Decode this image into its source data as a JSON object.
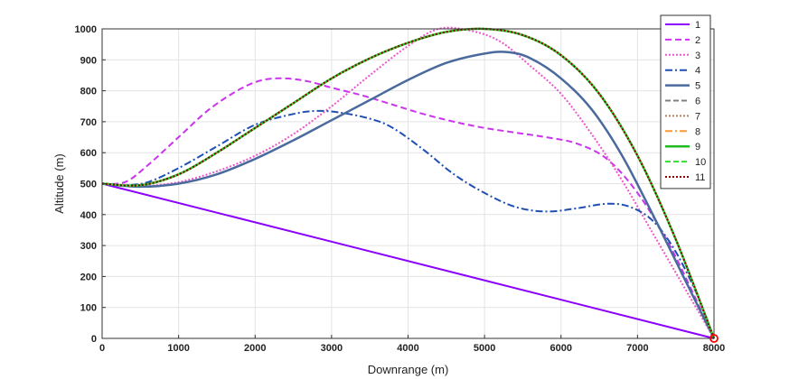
{
  "chart_data": {
    "type": "line",
    "xlabel": "Downrange (m)",
    "ylabel": "Altitude (m)",
    "xlim": [
      0,
      8000
    ],
    "ylim": [
      0,
      1000
    ],
    "xticks": [
      0,
      1000,
      2000,
      3000,
      4000,
      5000,
      6000,
      7000,
      8000
    ],
    "yticks": [
      0,
      100,
      200,
      300,
      400,
      500,
      600,
      700,
      800,
      900,
      1000
    ],
    "grid": true,
    "legend_position": "top-right",
    "target_marker": {
      "x": 8000,
      "y": 0,
      "color": "#ff0000"
    },
    "series": [
      {
        "name": "1",
        "color": "#8b00ff",
        "dash": "solid",
        "width": 2,
        "x": [
          0,
          8000
        ],
        "y": [
          500,
          0
        ]
      },
      {
        "name": "2",
        "color": "#cc33ee",
        "dash": "7,4",
        "width": 2,
        "x": [
          0,
          300,
          600,
          1000,
          1400,
          1800,
          2100,
          2400,
          2700,
          3000,
          3400,
          3800,
          4200,
          4600,
          5000,
          5400,
          5800,
          6200,
          6600,
          7000,
          7400,
          7700,
          8000
        ],
        "y": [
          500,
          505,
          560,
          650,
          740,
          805,
          835,
          840,
          830,
          810,
          785,
          755,
          725,
          700,
          680,
          665,
          650,
          630,
          580,
          470,
          310,
          160,
          0
        ]
      },
      {
        "name": "3",
        "color": "#ee55cc",
        "dash": "2,2",
        "width": 2,
        "x": [
          0,
          500,
          1000,
          1500,
          2000,
          2500,
          3000,
          3500,
          4000,
          4400,
          4800,
          5200,
          5600,
          6000,
          6400,
          6800,
          7200,
          7600,
          8000
        ],
        "y": [
          500,
          492,
          505,
          540,
          590,
          660,
          750,
          850,
          945,
          1000,
          995,
          960,
          880,
          790,
          660,
          510,
          340,
          170,
          0
        ]
      },
      {
        "name": "4",
        "color": "#1f4fb4",
        "dash": "8,3,2,3",
        "width": 2,
        "x": [
          0,
          300,
          600,
          1000,
          1500,
          2000,
          2500,
          2800,
          3100,
          3500,
          3800,
          4200,
          4600,
          5000,
          5400,
          5800,
          6200,
          6600,
          6900,
          7200,
          7500,
          7800,
          8000
        ],
        "y": [
          500,
          495,
          505,
          550,
          620,
          690,
          725,
          735,
          730,
          710,
          680,
          610,
          530,
          470,
          425,
          410,
          420,
          435,
          425,
          380,
          280,
          130,
          0
        ]
      },
      {
        "name": "5",
        "color": "#4a6a9e",
        "dash": "solid",
        "width": 2.5,
        "x": [
          0,
          500,
          1000,
          1500,
          2000,
          2500,
          3000,
          3500,
          4000,
          4500,
          5000,
          5300,
          5600,
          6000,
          6400,
          6800,
          7200,
          7600,
          8000
        ],
        "y": [
          500,
          490,
          500,
          530,
          580,
          640,
          705,
          770,
          835,
          890,
          920,
          925,
          905,
          840,
          740,
          590,
          400,
          200,
          0
        ]
      },
      {
        "name": "6",
        "color": "#808080",
        "dash": "6,3",
        "width": 2,
        "x": [
          0,
          500,
          1000,
          1500,
          2000,
          2500,
          3000,
          3500,
          4000,
          4500,
          5000,
          5500,
          6000,
          6500,
          7000,
          7500,
          8000
        ],
        "y": [
          500,
          495,
          530,
          600,
          680,
          760,
          840,
          905,
          955,
          990,
          1000,
          980,
          915,
          790,
          590,
          320,
          0
        ]
      },
      {
        "name": "7",
        "color": "#b08060",
        "dash": "2,2",
        "width": 2,
        "x": [
          0,
          500,
          1000,
          1500,
          2000,
          2500,
          3000,
          3500,
          4000,
          4500,
          5000,
          5500,
          6000,
          6500,
          7000,
          7500,
          8000
        ],
        "y": [
          500,
          495,
          530,
          600,
          680,
          760,
          840,
          905,
          955,
          990,
          1000,
          980,
          915,
          790,
          590,
          320,
          0
        ]
      },
      {
        "name": "8",
        "color": "#ff9933",
        "dash": "8,3,2,3",
        "width": 2,
        "x": [
          0,
          500,
          1000,
          1500,
          2000,
          2500,
          3000,
          3500,
          4000,
          4500,
          5000,
          5500,
          6000,
          6500,
          7000,
          7500,
          8000
        ],
        "y": [
          500,
          495,
          530,
          600,
          680,
          760,
          840,
          905,
          955,
          990,
          1000,
          980,
          915,
          790,
          590,
          320,
          0
        ]
      },
      {
        "name": "9",
        "color": "#22bb22",
        "dash": "solid",
        "width": 2.5,
        "x": [
          0,
          500,
          1000,
          1500,
          2000,
          2500,
          3000,
          3500,
          4000,
          4500,
          5000,
          5500,
          6000,
          6500,
          7000,
          7500,
          8000
        ],
        "y": [
          500,
          495,
          530,
          600,
          680,
          760,
          840,
          905,
          955,
          990,
          1000,
          980,
          915,
          790,
          590,
          320,
          0
        ]
      },
      {
        "name": "10",
        "color": "#33dd33",
        "dash": "6,3",
        "width": 2,
        "x": [
          0,
          500,
          1000,
          1500,
          2000,
          2500,
          3000,
          3500,
          4000,
          4500,
          5000,
          5500,
          6000,
          6500,
          7000,
          7500,
          8000
        ],
        "y": [
          500,
          495,
          530,
          600,
          680,
          760,
          840,
          905,
          955,
          990,
          1000,
          980,
          915,
          790,
          590,
          320,
          0
        ]
      },
      {
        "name": "11",
        "color": "#8b0000",
        "dash": "2,2",
        "width": 2,
        "x": [
          0,
          500,
          1000,
          1500,
          2000,
          2500,
          3000,
          3500,
          4000,
          4500,
          5000,
          5500,
          6000,
          6500,
          7000,
          7500,
          8000
        ],
        "y": [
          500,
          495,
          530,
          600,
          680,
          760,
          840,
          905,
          955,
          990,
          1000,
          980,
          915,
          790,
          590,
          320,
          0
        ]
      }
    ]
  }
}
